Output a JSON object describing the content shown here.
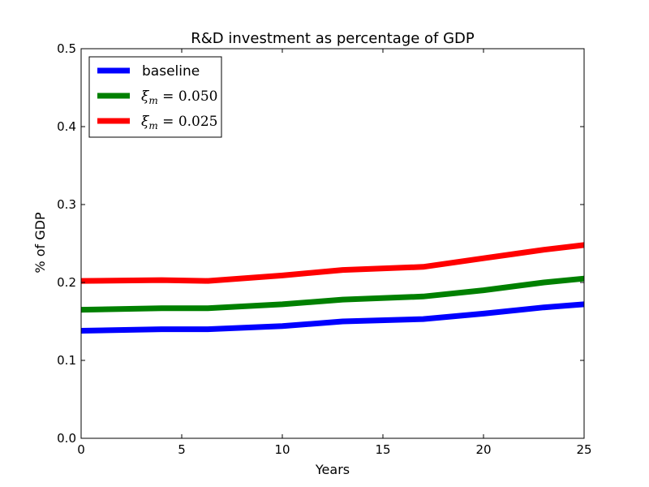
{
  "chart_data": {
    "type": "line",
    "title": "R&D investment as percentage of  GDP",
    "xlabel": "Years",
    "ylabel": "% of GDP",
    "xlim": [
      0,
      25
    ],
    "ylim": [
      0,
      0.5
    ],
    "xticks": [
      0,
      5,
      10,
      15,
      20,
      25
    ],
    "xtick_labels": [
      "0",
      "5",
      "10",
      "15",
      "20",
      "25"
    ],
    "yticks": [
      0,
      0.1,
      0.2,
      0.3,
      0.4,
      0.5
    ],
    "ytick_labels": [
      "0.0",
      "0.1",
      "0.2",
      "0.3",
      "0.4",
      "0.5"
    ],
    "grid": false,
    "legend": {
      "placement": "top-left"
    },
    "series": [
      {
        "name": "baseline",
        "label_style": "text",
        "color": "#0000ff",
        "x": [
          0,
          4,
          6.3,
          10,
          13,
          17,
          20,
          23,
          25
        ],
        "y": [
          0.138,
          0.14,
          0.14,
          0.144,
          0.15,
          0.153,
          0.16,
          0.168,
          0.172
        ]
      },
      {
        "name": "ξm = 0.050",
        "label_style": "math",
        "label_main": "ξ",
        "label_sub": "m",
        "label_rest": " = 0.050",
        "color": "#008000",
        "x": [
          0,
          4,
          6.3,
          10,
          13,
          17,
          20,
          23,
          25
        ],
        "y": [
          0.165,
          0.167,
          0.167,
          0.172,
          0.178,
          0.182,
          0.19,
          0.2,
          0.205
        ]
      },
      {
        "name": "ξm = 0.025",
        "label_style": "math",
        "label_main": "ξ",
        "label_sub": "m",
        "label_rest": " = 0.025",
        "color": "#ff0000",
        "x": [
          0,
          4,
          6.3,
          10,
          13,
          17,
          20,
          23,
          25
        ],
        "y": [
          0.202,
          0.203,
          0.202,
          0.209,
          0.216,
          0.22,
          0.231,
          0.242,
          0.248
        ]
      }
    ]
  }
}
